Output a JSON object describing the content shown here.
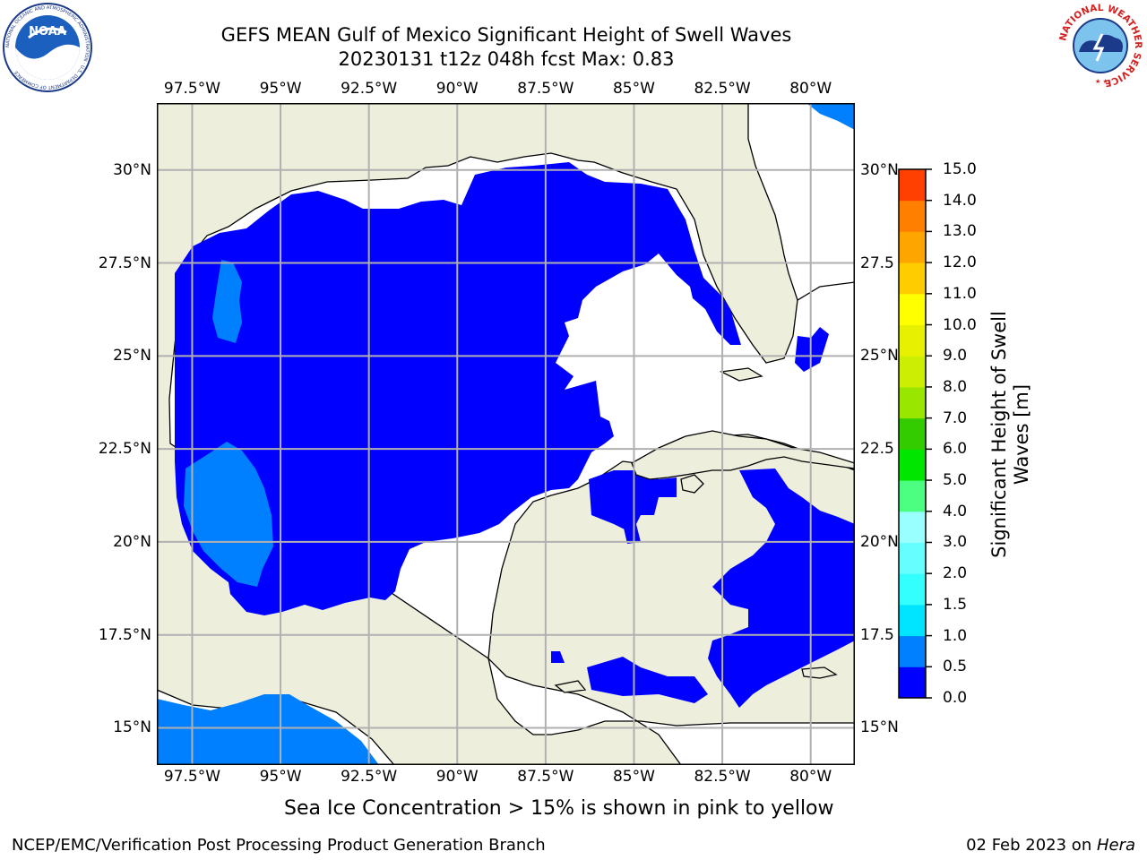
{
  "header": {
    "title_line1": "GEFS MEAN Gulf of Mexico Significant Height of Swell Waves",
    "title_line2": "20230131 t12z 048h fcst   Max: 0.83"
  },
  "logos": {
    "noara": {
      "name": "NOAA",
      "ring_text": "NATIONAL OCEANIC AND ATMOSPHERIC ADMINISTRATION · U.S. DEPARTMENT OF COMMERCE"
    },
    "nws": {
      "name": "NATIONAL WEATHER SERVICE"
    }
  },
  "map": {
    "extent": {
      "lon": [
        -98.5,
        -78.75
      ],
      "lat": [
        14.0,
        31.8
      ]
    },
    "lon_labels": [
      "97.5°W",
      "95°W",
      "92.5°W",
      "90°W",
      "87.5°W",
      "85°W",
      "82.5°W",
      "80°W"
    ],
    "lon_values": [
      -97.5,
      -95,
      -92.5,
      -90,
      -87.5,
      -85,
      -82.5,
      -80
    ],
    "lat_labels_left": [
      "30°N",
      "27.5°N",
      "25°N",
      "22.5°N",
      "20°N",
      "17.5°N",
      "15°N"
    ],
    "lat_labels_right": [
      "30°N",
      "27.5",
      "25°N",
      "22.5",
      "20°N",
      "17.5",
      "15°N"
    ],
    "lat_values": [
      30,
      27.5,
      25,
      22.5,
      20,
      17.5,
      15
    ],
    "colors": {
      "land": "#eeeedd",
      "grid": "#b0b0b0",
      "no_data": "#ffffff"
    },
    "field_levels": {
      "ocean_main": "0.0–0.5 m",
      "ocean_patches": "0.5–1.0 m"
    }
  },
  "colorbar": {
    "title": "Significant Height of Swell Waves [m]",
    "title_line1": "Significant Height of Swell",
    "title_line2": "Waves [m]",
    "ticks": [
      "0.0",
      "0.5",
      "1.0",
      "1.5",
      "2.0",
      "3.0",
      "4.0",
      "5.0",
      "6.0",
      "7.0",
      "8.0",
      "9.0",
      "10.0",
      "11.0",
      "12.0",
      "13.0",
      "14.0",
      "15.0"
    ],
    "colors": [
      "#0000ff",
      "#0080ff",
      "#00e5ff",
      "#33ffff",
      "#66ffff",
      "#99ffff",
      "#4dff80",
      "#00e600",
      "#33cc00",
      "#99e600",
      "#ccee00",
      "#e6f000",
      "#ffff00",
      "#ffcc00",
      "#ffa500",
      "#ff8000",
      "#ff4000",
      "#ff0000"
    ]
  },
  "notes": {
    "sea_ice": "Sea Ice Concentration > 15% is shown in pink to yellow"
  },
  "footer": {
    "left": "NCEP/EMC/Verification Post Processing Product Generation Branch",
    "right_prefix": "02 Feb 2023 on ",
    "right_host": "Hera"
  }
}
